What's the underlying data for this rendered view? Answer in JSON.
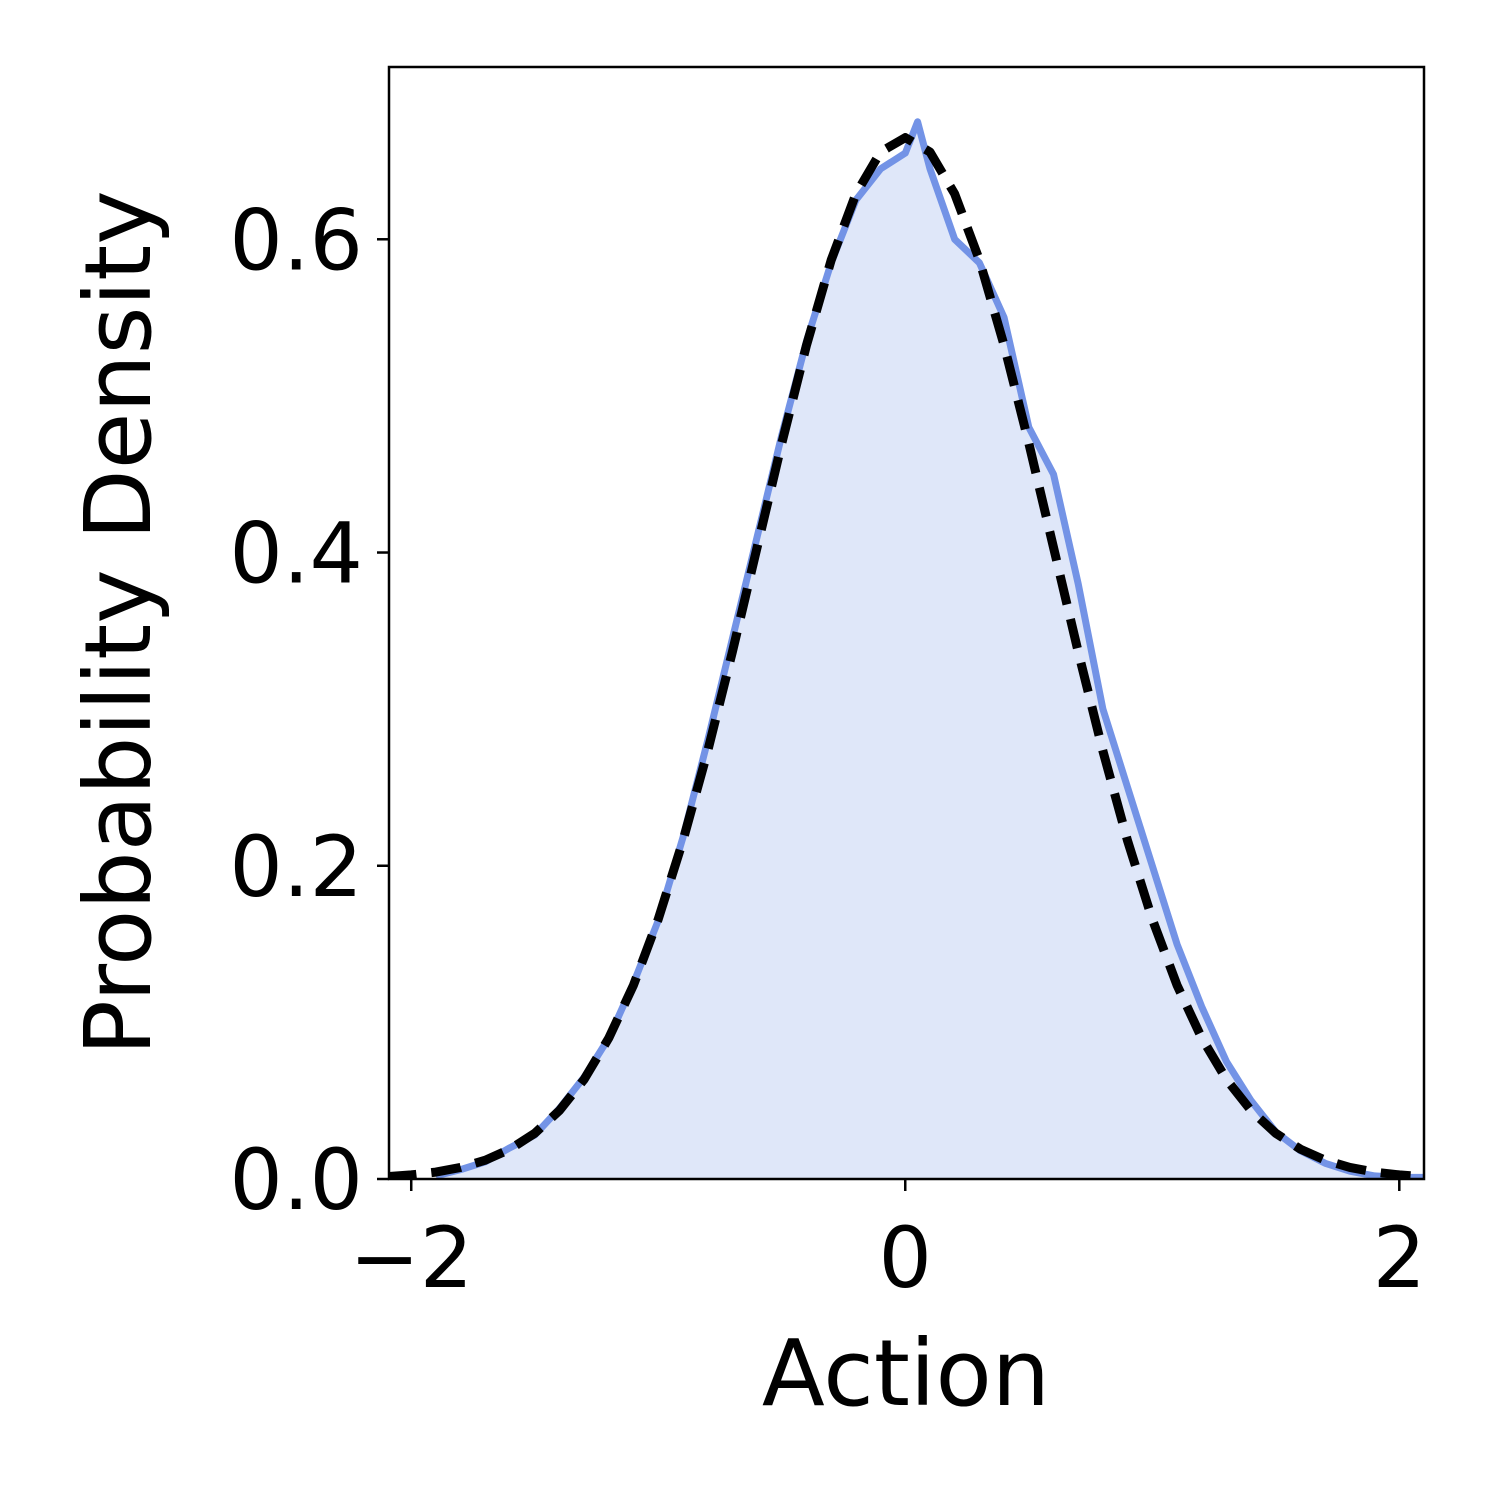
{
  "chart_data": {
    "type": "density",
    "x_label": "Action",
    "y_label": "Probability Density",
    "xlim": [
      -2.09,
      2.1
    ],
    "ylim": [
      0,
      0.71
    ],
    "xticks": [
      {
        "value": -2,
        "label": "−2"
      },
      0,
      2
    ],
    "yticks": [
      {
        "value": 0,
        "label": "0.0"
      },
      0.2,
      0.4,
      0.6
    ],
    "series": [
      {
        "color": "#7393e6",
        "fill": "#dfe7f9",
        "style": "solid",
        "x": [
          -1.9,
          -1.8,
          -1.7,
          -1.6,
          -1.5,
          -1.4,
          -1.3,
          -1.2,
          -1.1,
          -1.0,
          -0.9,
          -0.8,
          -0.7,
          -0.6,
          -0.5,
          -0.4,
          -0.3,
          -0.2,
          -0.1,
          0,
          0.05,
          0.1,
          0.2,
          0.3,
          0.4,
          0.5,
          0.6,
          0.7,
          0.8,
          0.9,
          1.0,
          1.1,
          1.2,
          1.3,
          1.4,
          1.5,
          1.6,
          1.7,
          1.8,
          1.9,
          2.0,
          2.1
        ],
        "values": [
          0.002,
          0.006,
          0.011,
          0.02,
          0.028,
          0.045,
          0.065,
          0.09,
          0.125,
          0.165,
          0.218,
          0.28,
          0.345,
          0.41,
          0.475,
          0.535,
          0.585,
          0.625,
          0.645,
          0.655,
          0.675,
          0.645,
          0.6,
          0.585,
          0.55,
          0.48,
          0.45,
          0.38,
          0.3,
          0.25,
          0.2,
          0.15,
          0.11,
          0.075,
          0.05,
          0.03,
          0.018,
          0.01,
          0.005,
          0.002,
          0.001,
          0.001
        ]
      },
      {
        "color": "#000000",
        "style": "dashed",
        "x": [
          -2.1,
          -2.0,
          -1.9,
          -1.8,
          -1.7,
          -1.6,
          -1.5,
          -1.4,
          -1.3,
          -1.2,
          -1.1,
          -1.0,
          -0.9,
          -0.8,
          -0.7,
          -0.6,
          -0.5,
          -0.4,
          -0.3,
          -0.2,
          -0.1,
          0,
          0.1,
          0.2,
          0.3,
          0.4,
          0.5,
          0.6,
          0.7,
          0.8,
          0.9,
          1.0,
          1.1,
          1.2,
          1.3,
          1.4,
          1.5,
          1.6,
          1.7,
          1.8,
          1.9,
          2.0,
          2.1
        ],
        "values": [
          0.0015,
          0.0026,
          0.0044,
          0.0074,
          0.012,
          0.019,
          0.0292,
          0.0437,
          0.0636,
          0.09,
          0.1238,
          0.1658,
          0.2159,
          0.2733,
          0.3366,
          0.4033,
          0.4698,
          0.5324,
          0.5868,
          0.629,
          0.6557,
          0.6649,
          0.6557,
          0.629,
          0.5868,
          0.5324,
          0.4698,
          0.4033,
          0.3366,
          0.2733,
          0.2159,
          0.1658,
          0.1238,
          0.09,
          0.0636,
          0.0437,
          0.0292,
          0.019,
          0.012,
          0.0074,
          0.0044,
          0.0026,
          0.0015
        ]
      }
    ]
  }
}
